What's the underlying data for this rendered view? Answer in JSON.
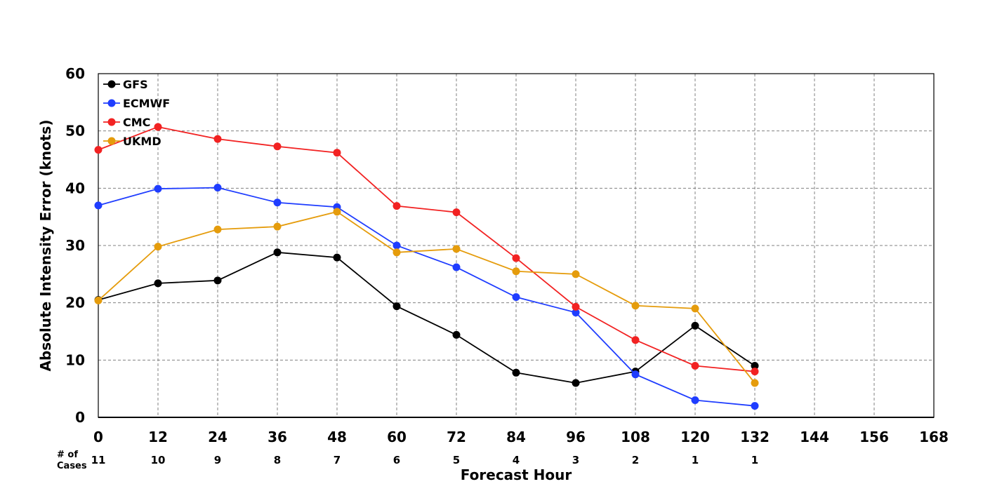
{
  "chart_data": {
    "type": "line",
    "xlabel": "Forecast Hour",
    "ylabel": "Absolute Intensity Error (knots)",
    "xlim": [
      0,
      168
    ],
    "ylim": [
      0,
      60
    ],
    "x_ticks": [
      0,
      12,
      24,
      36,
      48,
      60,
      72,
      84,
      96,
      108,
      120,
      132,
      144,
      156,
      168
    ],
    "y_ticks": [
      0,
      10,
      20,
      30,
      40,
      50,
      60
    ],
    "grid": true,
    "legend_position": "top-left",
    "cases_label_line1": "# of",
    "cases_label_line2": "Cases",
    "cases": [
      {
        "x": 0,
        "n": "11"
      },
      {
        "x": 12,
        "n": "10"
      },
      {
        "x": 24,
        "n": "9"
      },
      {
        "x": 36,
        "n": "8"
      },
      {
        "x": 48,
        "n": "7"
      },
      {
        "x": 60,
        "n": "6"
      },
      {
        "x": 72,
        "n": "5"
      },
      {
        "x": 84,
        "n": "4"
      },
      {
        "x": 96,
        "n": "3"
      },
      {
        "x": 108,
        "n": "2"
      },
      {
        "x": 120,
        "n": "1"
      },
      {
        "x": 132,
        "n": "1"
      }
    ],
    "x": [
      0,
      12,
      24,
      36,
      48,
      60,
      72,
      84,
      96,
      108,
      120,
      132
    ],
    "series": [
      {
        "name": "GFS",
        "color": "#000000",
        "values": [
          20.5,
          23.4,
          23.9,
          28.8,
          27.9,
          19.4,
          14.4,
          7.8,
          6.0,
          8.0,
          16.0,
          9.0
        ]
      },
      {
        "name": "ECMWF",
        "color": "#1f3dff",
        "values": [
          37.0,
          39.9,
          40.1,
          37.5,
          36.7,
          30.0,
          26.2,
          21.0,
          18.3,
          7.5,
          3.0,
          2.0
        ]
      },
      {
        "name": "CMC",
        "color": "#f22222",
        "values": [
          46.7,
          50.7,
          48.6,
          47.3,
          46.2,
          36.9,
          35.8,
          27.8,
          19.3,
          13.5,
          9.0,
          8.0
        ]
      },
      {
        "name": "UKMD",
        "color": "#e59c0c",
        "values": [
          20.4,
          29.8,
          32.8,
          33.3,
          35.9,
          28.8,
          29.4,
          25.5,
          25.0,
          19.5,
          19.0,
          6.0
        ]
      }
    ]
  }
}
